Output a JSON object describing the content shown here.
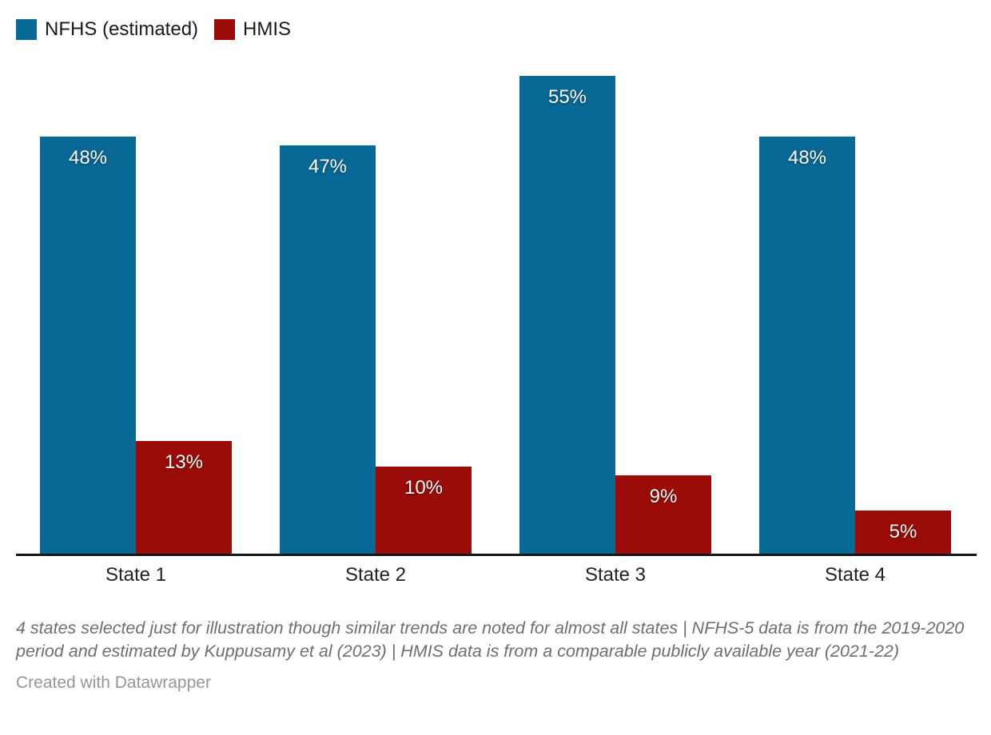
{
  "legend": {
    "items": [
      {
        "label": "NFHS (estimated)",
        "color": "#086997"
      },
      {
        "label": "HMIS",
        "color": "#9b0c08"
      }
    ]
  },
  "chart_data": {
    "type": "bar",
    "categories": [
      "State 1",
      "State 2",
      "State 3",
      "State 4"
    ],
    "series": [
      {
        "name": "NFHS (estimated)",
        "color": "#086997",
        "values": [
          48,
          47,
          55,
          48
        ]
      },
      {
        "name": "HMIS",
        "color": "#9b0c08",
        "values": [
          13,
          10,
          9,
          5
        ]
      }
    ],
    "value_suffix": "%",
    "title": "",
    "xlabel": "",
    "ylabel": "",
    "ylim": [
      0,
      57
    ],
    "grid": false,
    "legend_position": "top-left",
    "bar_label_color": "#ffffff",
    "axis_line_color": "#161616"
  },
  "notes": "4 states selected just for illustration though similar trends are noted for almost all states | NFHS-5 data is from the 2019-2020 period and estimated by Kuppusamy et al (2023) | HMIS data is from a comparable publicly available year (2021-22)",
  "attribution": "Created with Datawrapper"
}
